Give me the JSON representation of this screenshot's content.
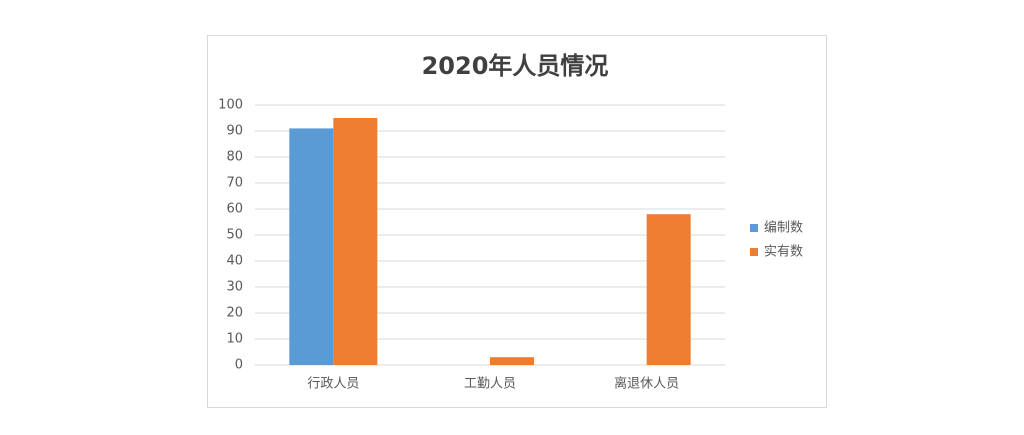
{
  "chart_data": {
    "type": "bar",
    "title": "2020年人员情况",
    "categories": [
      "行政人员",
      "工勤人员",
      "离退休人员"
    ],
    "series": [
      {
        "name": "编制数",
        "color": "#5b9bd5",
        "values": [
          91,
          0,
          0
        ]
      },
      {
        "name": "实有数",
        "color": "#ed7d31",
        "values": [
          95,
          3,
          58
        ]
      }
    ],
    "ylim": [
      0,
      100
    ],
    "yticks": [
      0,
      10,
      20,
      30,
      40,
      50,
      60,
      70,
      80,
      90,
      100
    ],
    "grid": true,
    "legend": "right"
  }
}
